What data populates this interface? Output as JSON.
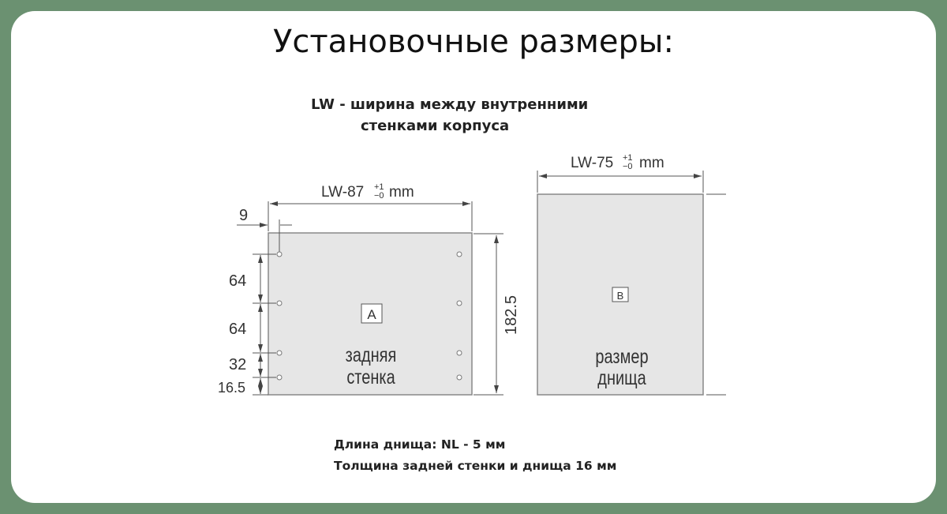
{
  "title": "Установочные размеры:",
  "definition": {
    "line1": "LW -  ширина между внутренними",
    "line2": "стенками корпуса"
  },
  "panel_a": {
    "width_label": "LW-87",
    "tol_plus": "+1",
    "tol_minus": "−0",
    "unit": "mm",
    "offset": "9",
    "height": "182.5",
    "spacings": [
      "64",
      "64",
      "32",
      "16.5"
    ],
    "marker": "A",
    "caption1": "задняя",
    "caption2": "стенка"
  },
  "panel_b": {
    "width_label": "LW-75",
    "tol_plus": "+1",
    "tol_minus": "−0",
    "unit": "mm",
    "marker": "B",
    "caption1": "размер",
    "caption2": "днища"
  },
  "notes": {
    "line1": "Длина днища: NL - 5  мм",
    "line2": "Толщина задней стенки и днища 16 мм"
  },
  "colors": {
    "background": "#6b9171",
    "panel_fill": "#e6e6e6",
    "line": "#555555"
  }
}
